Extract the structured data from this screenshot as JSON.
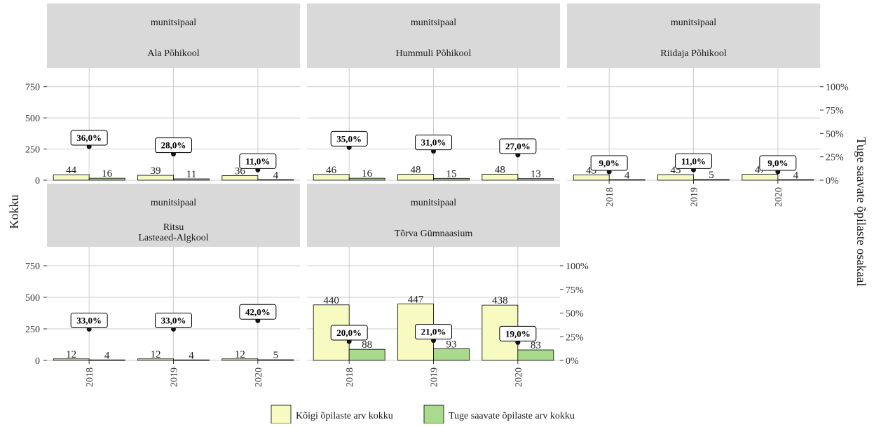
{
  "chart_data": {
    "type": "bar",
    "facet_strip_top": "munitsipaal",
    "ylabel_left": "Kokku",
    "ylabel_right": "Tuge saavate õpilaste osakaal",
    "left_axis": {
      "ylim": [
        0,
        900
      ],
      "ticks": [
        0,
        250,
        500,
        750
      ]
    },
    "right_axis": {
      "ylim": [
        0,
        1.2
      ],
      "ticks": [
        "0%",
        "25%",
        "50%",
        "75%",
        "100%"
      ],
      "tick_values": [
        0,
        0.25,
        0.5,
        0.75,
        1.0
      ]
    },
    "categories": [
      "2018",
      "2019",
      "2020"
    ],
    "colors": {
      "total": "#f7fbc1",
      "support": "#a9da8d",
      "strip": "#d9d9d9",
      "grid": "#cccccc",
      "text": "#333333"
    },
    "legend": {
      "position": "bottom",
      "items": [
        {
          "label": "Kõigi õpilaste arv kokku",
          "color": "#f7fbc1"
        },
        {
          "label": "Tuge saavate õpilaste arv kokku",
          "color": "#a9da8d"
        }
      ]
    },
    "facets": [
      {
        "school": "Ala Põhikool",
        "total": [
          44,
          39,
          36
        ],
        "support": [
          16,
          11,
          4
        ],
        "share": [
          0.36,
          0.28,
          0.11
        ],
        "share_labels": [
          "36,0%",
          "28,0%",
          "11,0%"
        ]
      },
      {
        "school": "Hummuli Põhikool",
        "total": [
          46,
          48,
          48
        ],
        "support": [
          16,
          15,
          13
        ],
        "share": [
          0.35,
          0.31,
          0.27
        ],
        "share_labels": [
          "35,0%",
          "31,0%",
          "27,0%"
        ]
      },
      {
        "school": "Riidaja Põhikool",
        "total": [
          43,
          45,
          47
        ],
        "support": [
          4,
          5,
          4
        ],
        "share": [
          0.09,
          0.11,
          0.09
        ],
        "share_labels": [
          "9,0%",
          "11,0%",
          "9,0%"
        ]
      },
      {
        "school": "Ritsu\nLasteaed-Algkool",
        "total": [
          12,
          12,
          12
        ],
        "support": [
          4,
          4,
          5
        ],
        "share": [
          0.33,
          0.33,
          0.42
        ],
        "share_labels": [
          "33,0%",
          "33,0%",
          "42,0%"
        ]
      },
      {
        "school": "Tõrva Gümnaasium",
        "total": [
          440,
          447,
          438
        ],
        "support": [
          88,
          93,
          83
        ],
        "share": [
          0.2,
          0.21,
          0.19
        ],
        "share_labels": [
          "20,0%",
          "21,0%",
          "19,0%"
        ]
      }
    ]
  }
}
